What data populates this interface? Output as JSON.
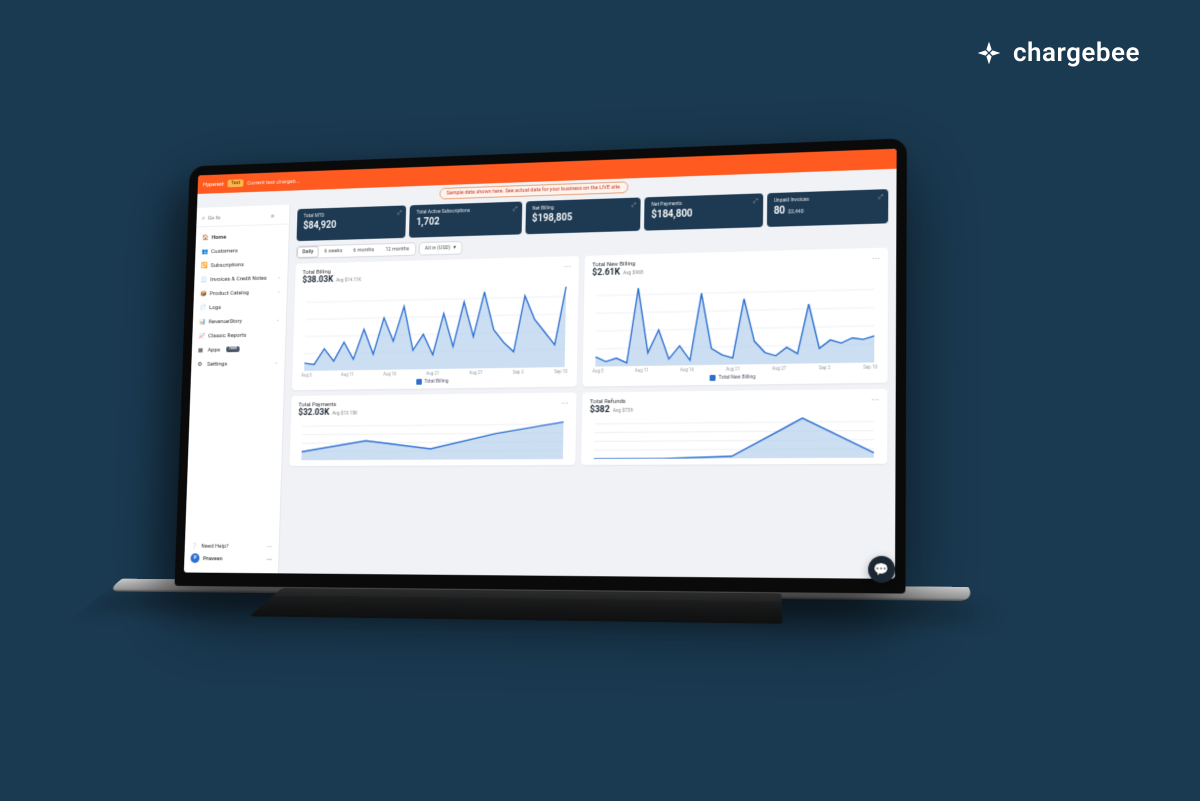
{
  "brand": {
    "name": "chargebee"
  },
  "topbar": {
    "site": "Hyperext",
    "badge": "Test",
    "subtitle": "Current test chargeb..."
  },
  "banner": {
    "text": "Sample data shown here. See actual data for your business on the LIVE site."
  },
  "search": {
    "placeholder": "Go to"
  },
  "sidebar": {
    "items": [
      {
        "label": "Home",
        "active": true
      },
      {
        "label": "Customers"
      },
      {
        "label": "Subscriptions"
      },
      {
        "label": "Invoices & Credit Notes",
        "expandable": true
      },
      {
        "label": "Product Catalog",
        "expandable": true
      },
      {
        "label": "Logs"
      },
      {
        "label": "RevenueStory",
        "expandable": true
      },
      {
        "label": "Classic Reports"
      },
      {
        "label": "Apps",
        "pill": "New"
      },
      {
        "label": "Settings",
        "expandable": true
      }
    ],
    "help_label": "Need Help?",
    "user": "Praveen"
  },
  "kpis": [
    {
      "label": "Total MTD",
      "value": "$84,920"
    },
    {
      "label": "Total Active Subscriptions",
      "value": "1,702"
    },
    {
      "label": "Net Billing",
      "value": "$198,805"
    },
    {
      "label": "Net Payments",
      "value": "$184,800"
    },
    {
      "label": "Unpaid Invoices",
      "value": "80",
      "sub": "$2,440"
    }
  ],
  "range": {
    "segments": [
      "Daily",
      "6 weeks",
      "6 months",
      "12 months"
    ],
    "active": 0,
    "currency": "All in (USD)"
  },
  "cards": {
    "total_billing": {
      "title": "Total Billing",
      "value": "$38.03K",
      "avg": "Avg $14.11K",
      "type": "area",
      "color_line": "#2c6fd1",
      "color_fill": "#b9d3ee",
      "x_labels": [
        "Aug 5",
        "Aug 11",
        "Aug 16",
        "Aug 21",
        "Aug 27",
        "Sep 3",
        "Sep 10"
      ],
      "values": [
        5,
        4,
        14,
        6,
        18,
        7,
        26,
        10,
        33,
        18,
        40,
        12,
        22,
        9,
        35,
        14,
        42,
        20,
        48,
        24,
        16,
        10,
        45,
        30,
        22,
        14,
        50
      ],
      "y_max": 55,
      "legend": "Total Billing"
    },
    "total_new_billing": {
      "title": "Total New Billing",
      "value": "$2.61K",
      "avg": "Avg $968",
      "type": "area",
      "color_line": "#2c6fd1",
      "color_fill": "#b9d3ee",
      "x_labels": [
        "Aug 5",
        "Aug 11",
        "Aug 16",
        "Aug 21",
        "Aug 27",
        "Sep 3",
        "Sep 10"
      ],
      "values": [
        6,
        3,
        5,
        2,
        48,
        8,
        22,
        4,
        12,
        3,
        44,
        10,
        6,
        4,
        40,
        14,
        7,
        5,
        10,
        6,
        36,
        9,
        14,
        12,
        15,
        14,
        16
      ],
      "y_max": 55,
      "legend": "Total New Billing"
    },
    "total_payments": {
      "title": "Total Payments",
      "value": "$32.03K",
      "avg": "Avg $13.15K",
      "type": "area",
      "color_line": "#2c6fd1",
      "color_fill": "#b9d3ee",
      "x_labels": [],
      "values": [
        8,
        18,
        10,
        24,
        34
      ],
      "y_max": 40
    },
    "total_refunds": {
      "title": "Total Refunds",
      "value": "$382",
      "avg": "Avg $739",
      "type": "area",
      "color_line": "#2c6fd1",
      "color_fill": "#b9d3ee",
      "x_labels": [],
      "values": [
        0,
        0,
        2,
        40,
        5
      ],
      "y_max": 45
    }
  },
  "colors": {
    "page_bg": "#1a3a52",
    "kpi_bg": "#1e3a52",
    "accent_orange": "#ff5a1f",
    "chart_line": "#2c6fd1",
    "chart_fill": "#b9d3ee",
    "card_bg": "#ffffff",
    "main_bg": "#f0f2f5"
  }
}
